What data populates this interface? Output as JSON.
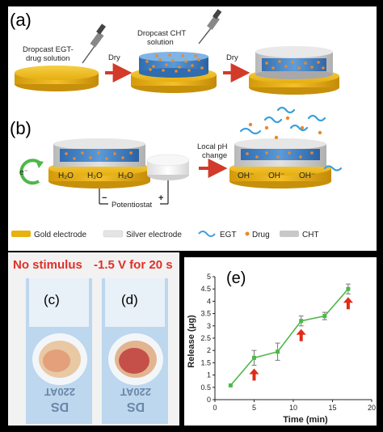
{
  "panel_a": {
    "label": "(a)",
    "step1": "Dropcast EGT-\ndrug solution",
    "step2": "Dropcast CHT\nsolution",
    "dry1": "Dry",
    "dry2": "Dry"
  },
  "panel_b": {
    "label": "(b)",
    "electron": "e⁻",
    "water": [
      "H₂O",
      "H₂O",
      "H₂O"
    ],
    "hydroxide": [
      "OH⁻",
      "OH⁻",
      "OH⁻"
    ],
    "minus": "−",
    "plus": "+",
    "potentiostat": "Potentiostat",
    "ph_change": "Local pH\nchange"
  },
  "legend": {
    "gold": "Gold electrode",
    "silver": "Silver electrode",
    "egt": "EGT",
    "drug": "Drug",
    "cht": "CHT"
  },
  "photos": {
    "left_title": "No stimulus",
    "right_title": "-1.5 V for 20 s",
    "left_label": "(c)",
    "right_label": "(d)",
    "strip_text_1": "DS",
    "strip_text_2": "220AT"
  },
  "colors": {
    "gold": "#e8b20e",
    "gold_dark": "#c7900a",
    "cht": "#c8c8c8",
    "blue_layer": "#3f7fc4",
    "drug": "#e88a2e",
    "egt": "#3aa0dc",
    "arrow_red": "#d23a2a",
    "green_line": "#4db848",
    "error_arrow": "#e02a1a",
    "photo_red_text": "#e0302a"
  },
  "chart_data": {
    "type": "line",
    "panel_label": "(e)",
    "xlabel": "Time (min)",
    "ylabel": "Release (μg)",
    "xlim": [
      0,
      20
    ],
    "ylim": [
      0,
      5
    ],
    "xticks": [
      0,
      5,
      10,
      15,
      20
    ],
    "yticks": [
      0,
      0.5,
      1,
      1.5,
      2,
      2.5,
      3,
      3.5,
      4,
      4.5,
      5
    ],
    "ytick_labels": [
      "0",
      "0.5",
      "1",
      "1.5",
      "2",
      "2.5",
      "3",
      "3.5",
      "4",
      "4.5",
      "5"
    ],
    "x": [
      2,
      5,
      8,
      11,
      14,
      17
    ],
    "y": [
      0.58,
      1.7,
      1.95,
      3.2,
      3.4,
      4.5
    ],
    "error": [
      0.0,
      0.3,
      0.35,
      0.2,
      0.15,
      0.2
    ],
    "stimulus_arrows_at_x": [
      5,
      11,
      17
    ],
    "grid": false
  }
}
